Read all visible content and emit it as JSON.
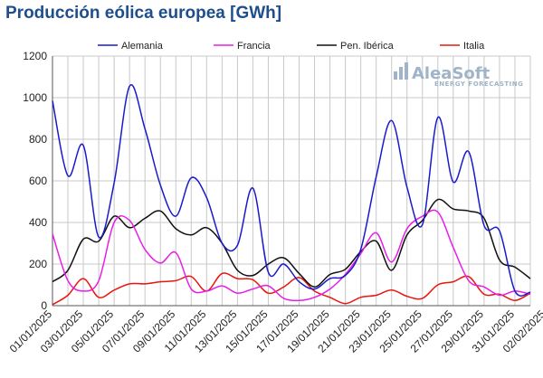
{
  "chart_data": {
    "type": "line",
    "title": "Producción eólica europea [GWh]",
    "xlabel": "",
    "ylabel": "",
    "ylim": [
      0,
      1200
    ],
    "y_ticks": [
      0,
      200,
      400,
      600,
      800,
      1000,
      1200
    ],
    "x_tick_labels": [
      "01/01/2025",
      "03/01/2025",
      "05/01/2025",
      "07/01/2025",
      "09/01/2025",
      "11/01/2025",
      "13/01/2025",
      "15/01/2025",
      "17/01/2025",
      "19/01/2025",
      "21/01/2025",
      "23/01/2025",
      "25/01/2025",
      "27/01/2025",
      "29/01/2025",
      "31/01/2025",
      "02/02/2025"
    ],
    "grid": true,
    "legend_position": "top",
    "series": [
      {
        "name": "Alemania",
        "color": "#1a1acd",
        "values": [
          985,
          625,
          770,
          330,
          590,
          1055,
          850,
          580,
          430,
          615,
          520,
          300,
          290,
          565,
          160,
          200,
          115,
          80,
          130,
          145,
          270,
          620,
          890,
          570,
          390,
          905,
          595,
          740,
          385,
          360,
          70,
          65
        ]
      },
      {
        "name": "Francia",
        "color": "#e81de8",
        "values": [
          345,
          120,
          70,
          120,
          400,
          410,
          270,
          205,
          255,
          80,
          70,
          95,
          60,
          80,
          95,
          35,
          25,
          40,
          80,
          150,
          250,
          350,
          210,
          370,
          430,
          450,
          280,
          120,
          90,
          50,
          70,
          55
        ]
      },
      {
        "name": "Pen. Ibérica",
        "color": "#111111",
        "values": [
          115,
          170,
          320,
          310,
          430,
          375,
          420,
          455,
          370,
          340,
          375,
          300,
          170,
          145,
          200,
          230,
          155,
          90,
          150,
          175,
          260,
          310,
          170,
          340,
          410,
          510,
          465,
          455,
          420,
          220,
          185,
          130
        ]
      },
      {
        "name": "Italia",
        "color": "#e8160e",
        "values": [
          5,
          50,
          130,
          40,
          75,
          105,
          105,
          115,
          120,
          140,
          70,
          155,
          130,
          125,
          60,
          90,
          135,
          70,
          40,
          10,
          40,
          50,
          75,
          45,
          35,
          100,
          115,
          140,
          55,
          55,
          25,
          60
        ]
      }
    ]
  }
}
